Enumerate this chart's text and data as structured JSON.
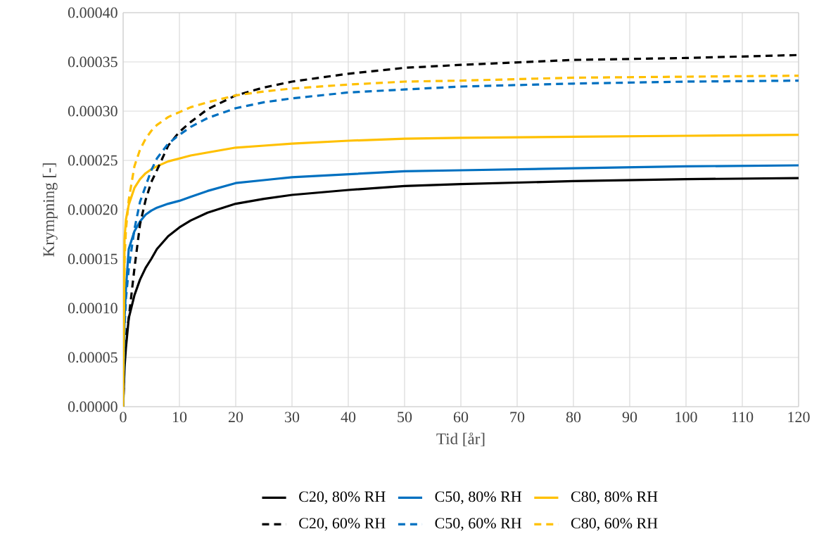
{
  "chart_data": {
    "type": "line",
    "xlabel": "Tid  [år]",
    "ylabel": "Krympning [-]",
    "x": [
      0,
      0.25,
      0.5,
      1,
      2,
      3,
      4,
      5,
      6,
      8,
      10,
      12,
      15,
      20,
      25,
      30,
      40,
      50,
      60,
      80,
      100,
      120
    ],
    "series": [
      {
        "name": "C20, 80% RH",
        "color": "#000000",
        "line_style": "solid",
        "values": [
          0,
          4e-05,
          6e-05,
          9e-05,
          0.000113,
          0.000129,
          0.000141,
          0.00015,
          0.00016,
          0.000173,
          0.000182,
          0.000189,
          0.000197,
          0.000206,
          0.000211,
          0.000215,
          0.00022,
          0.000224,
          0.000226,
          0.000229,
          0.000231,
          0.000232
        ]
      },
      {
        "name": "C50, 80% RH",
        "color": "#0070c0",
        "line_style": "solid",
        "values": [
          0,
          9e-05,
          0.00012,
          0.00016,
          0.000178,
          0.000188,
          0.000195,
          0.000199,
          0.000202,
          0.000206,
          0.000209,
          0.000213,
          0.000219,
          0.000227,
          0.00023,
          0.000233,
          0.000236,
          0.000239,
          0.00024,
          0.000242,
          0.000244,
          0.000245
        ]
      },
      {
        "name": "C80, 80% RH",
        "color": "#ffc000",
        "line_style": "solid",
        "values": [
          0,
          0.00017,
          0.00019,
          0.000205,
          0.000222,
          0.000231,
          0.000237,
          0.000241,
          0.000244,
          0.000249,
          0.000252,
          0.000255,
          0.000258,
          0.000263,
          0.000265,
          0.000267,
          0.00027,
          0.000272,
          0.000273,
          0.000274,
          0.000275,
          0.000276
        ]
      },
      {
        "name": "C20, 60% RH",
        "color": "#000000",
        "line_style": "dashed",
        "values": [
          0,
          5e-05,
          7e-05,
          9e-05,
          0.00014,
          0.000185,
          0.00021,
          0.000228,
          0.00024,
          0.000265,
          0.000279,
          0.000289,
          0.000302,
          0.000316,
          0.000324,
          0.00033,
          0.000338,
          0.000344,
          0.000347,
          0.000352,
          0.000354,
          0.000357
        ]
      },
      {
        "name": "C50, 60% RH",
        "color": "#0070c0",
        "line_style": "dashed",
        "values": [
          0,
          8e-05,
          0.00011,
          0.00014,
          0.00018,
          0.000208,
          0.000224,
          0.00024,
          0.000252,
          0.000267,
          0.000276,
          0.000284,
          0.000293,
          0.000303,
          0.000309,
          0.000313,
          0.000319,
          0.000322,
          0.000325,
          0.000328,
          0.00033,
          0.000331
        ]
      },
      {
        "name": "C80, 60% RH",
        "color": "#ffc000",
        "line_style": "dashed",
        "values": [
          0,
          0.00015,
          0.00018,
          0.00021,
          0.000244,
          0.000261,
          0.000272,
          0.00028,
          0.000286,
          0.000294,
          0.000299,
          0.000304,
          0.000309,
          0.000316,
          0.00032,
          0.000323,
          0.000327,
          0.00033,
          0.000331,
          0.000334,
          0.000335,
          0.000336
        ]
      }
    ],
    "xlim": [
      0,
      120
    ],
    "xticks": [
      0,
      10,
      20,
      30,
      40,
      50,
      60,
      70,
      80,
      90,
      100,
      110,
      120
    ],
    "ylim": [
      0,
      0.0004
    ],
    "yticks": [
      {
        "value": 0,
        "label": "0.00000"
      },
      {
        "value": 5e-05,
        "label": "0.00005"
      },
      {
        "value": 0.0001,
        "label": "0.00010"
      },
      {
        "value": 0.00015,
        "label": "0.00015"
      },
      {
        "value": 0.0002,
        "label": "0.00020"
      },
      {
        "value": 0.00025,
        "label": "0.00025"
      },
      {
        "value": 0.0003,
        "label": "0.00030"
      },
      {
        "value": 0.00035,
        "label": "0.00035"
      },
      {
        "value": 0.0004,
        "label": "0.00040"
      }
    ],
    "grid": true,
    "legend": "bottom"
  }
}
